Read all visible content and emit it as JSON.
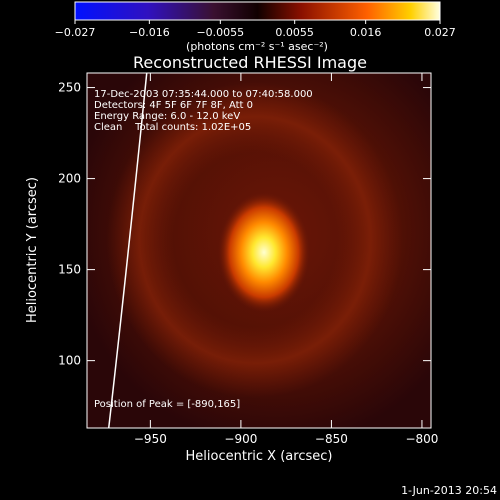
{
  "chart_data": {
    "type": "heatmap",
    "title": "Reconstructed RHESSI Image",
    "xlabel": "Heliocentric X (arcsec)",
    "ylabel": "Heliocentric Y (arcsec)",
    "xlim": [
      -985,
      -795
    ],
    "ylim": [
      63,
      258
    ],
    "x_ticks": [
      -950,
      -900,
      -850,
      -800
    ],
    "x_tick_labels": [
      "−950",
      "−900",
      "−850",
      "−800"
    ],
    "y_ticks": [
      100,
      150,
      200,
      250
    ],
    "y_tick_labels": [
      "100",
      "150",
      "200",
      "250"
    ],
    "colorbar": {
      "min": -0.027,
      "max": 0.027,
      "ticks": [
        -0.027,
        -0.016,
        -0.0055,
        0.0055,
        0.016,
        0.027
      ],
      "tick_labels": [
        "−0.027",
        "−0.016",
        "−0.0055",
        "0.0055",
        "0.016",
        "0.027"
      ],
      "units_label": "(photons cm⁻² s⁻¹ asec⁻²)"
    },
    "annotations": {
      "time": "17-Dec-2003 07:35:44.000 to 07:40:58.000",
      "detectors": "Detectors: 4F 5F 6F 7F 8F, Att 0",
      "energy": "Energy Range: 6.0 - 12.0 keV",
      "clean": "Clean    Total counts: 1.02E+05",
      "peak": "Position of Peak = [-890,165]"
    },
    "peak": {
      "x": -890,
      "y": 165
    },
    "limb_curve": [
      [
        -973,
        63
      ],
      [
        -963,
        150
      ],
      [
        -952,
        258
      ]
    ],
    "footer_date": "1-Jun-2013 20:54"
  }
}
